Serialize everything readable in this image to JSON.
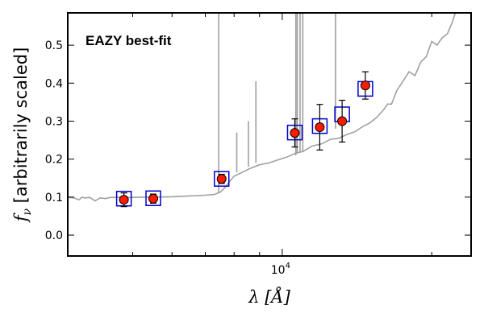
{
  "chart_data": {
    "type": "scatter",
    "title": "",
    "annotation": "EAZY best-fit",
    "annotation_color": "#ff0000",
    "xlabel": "λ [Å]",
    "ylabel": "fν [arbitrarily scaled]",
    "ylabel_symbol": "f",
    "ylabel_subscript": "ν",
    "ylabel_rest": " [arbitrarily scaled]",
    "xlabel_symbol": "λ",
    "xlabel_rest": " [Å]",
    "x_scale": "log",
    "xlim": [
      3700,
      24000
    ],
    "ylim": [
      -0.055,
      0.585
    ],
    "x_ticks": [
      {
        "value": 10000,
        "base": "10",
        "exp": "4"
      }
    ],
    "x_minor_ticks": [
      5000,
      6000,
      7000,
      8000,
      9000,
      20000
    ],
    "y_ticks": [
      0.0,
      0.1,
      0.2,
      0.3,
      0.4,
      0.5
    ],
    "y_tick_labels": [
      "0.0",
      "0.1",
      "0.2",
      "0.3",
      "0.4",
      "0.5"
    ],
    "grid": false,
    "colors": {
      "template": "#a0a0a0",
      "model_box": "#0000cc",
      "observed_fill": "#ff1a00",
      "observed_edge": "#000000",
      "errorbar": "#000000"
    },
    "series": [
      {
        "name": "Template spectrum",
        "kind": "line",
        "x": [
          3700,
          3800,
          3900,
          3950,
          4000,
          4100,
          4200,
          4300,
          4400,
          4500,
          4700,
          4900,
          5200,
          5500,
          6000,
          6500,
          7000,
          7300,
          7500,
          7600,
          7700,
          7800,
          8000,
          8300,
          8600,
          9000,
          9400,
          9800,
          10200,
          10600,
          11000,
          11500,
          12000,
          12500,
          13000,
          13500,
          14000,
          14500,
          15000,
          15500,
          16000,
          16300,
          16600,
          17000,
          17500,
          18000,
          18500,
          19000,
          19500,
          20000,
          20500,
          21000,
          21500,
          22000,
          22300
        ],
        "y": [
          0.1,
          0.098,
          0.093,
          0.1,
          0.098,
          0.099,
          0.09,
          0.098,
          0.096,
          0.099,
          0.1,
          0.099,
          0.1,
          0.1,
          0.101,
          0.103,
          0.105,
          0.107,
          0.113,
          0.12,
          0.128,
          0.138,
          0.155,
          0.165,
          0.175,
          0.185,
          0.19,
          0.198,
          0.205,
          0.215,
          0.22,
          0.235,
          0.24,
          0.252,
          0.255,
          0.265,
          0.272,
          0.285,
          0.295,
          0.31,
          0.33,
          0.345,
          0.345,
          0.38,
          0.405,
          0.43,
          0.42,
          0.455,
          0.47,
          0.51,
          0.5,
          0.52,
          0.53,
          0.56,
          0.585
        ]
      },
      {
        "name": "Template emission lines",
        "kind": "spikes",
        "x": [
          7450,
          8100,
          8550,
          8850,
          10650,
          10720,
          10860,
          11000,
          12800
        ],
        "base": [
          0.11,
          0.165,
          0.18,
          0.19,
          0.21,
          0.215,
          0.218,
          0.22,
          0.28
        ],
        "top": [
          0.585,
          0.27,
          0.3,
          0.405,
          0.585,
          0.585,
          0.585,
          0.585,
          0.585
        ]
      },
      {
        "name": "Model photometry",
        "kind": "squares",
        "x": [
          4800,
          5500,
          7550,
          10600,
          11900,
          13200,
          14700
        ],
        "y": [
          0.096,
          0.097,
          0.148,
          0.27,
          0.287,
          0.318,
          0.385
        ]
      },
      {
        "name": "Observed photometry",
        "kind": "points",
        "x": [
          4800,
          5500,
          7550,
          10600,
          11900,
          13200,
          14700
        ],
        "y": [
          0.093,
          0.096,
          0.148,
          0.269,
          0.284,
          0.3,
          0.394
        ],
        "yerr": [
          0.018,
          0.012,
          0.012,
          0.037,
          0.06,
          0.055,
          0.036
        ]
      }
    ]
  }
}
